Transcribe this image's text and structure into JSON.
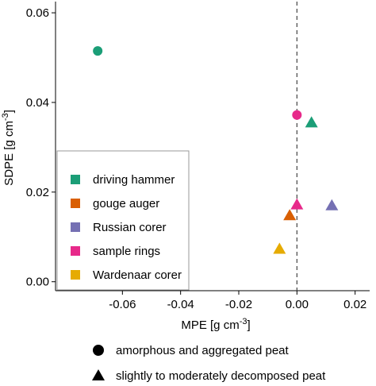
{
  "chart_data": {
    "type": "scatter",
    "xlabel": "MPE [g cm",
    "xlabel_sup": "-3",
    "xlabel_end": "]",
    "ylabel": "SDPE [g cm",
    "ylabel_sup": "-3",
    "ylabel_end": "]",
    "xlim": [
      -0.083,
      0.025
    ],
    "ylim": [
      -0.002,
      0.0625
    ],
    "x_ticks": [
      -0.06,
      -0.04,
      -0.02,
      0.0,
      0.02
    ],
    "x_tick_labels": [
      "-0.06",
      "-0.04",
      "-0.02",
      "0.00",
      "0.02"
    ],
    "y_ticks": [
      0.0,
      0.02,
      0.04,
      0.06
    ],
    "y_tick_labels": [
      "0.00",
      "0.02",
      "0.04",
      "0.06"
    ],
    "reference_line": {
      "x": 0,
      "style": "dashed"
    },
    "grid": false,
    "color_legend": {
      "placement": "bottom-left",
      "entries": [
        {
          "name": "driving hammer",
          "color": "#1b9e77"
        },
        {
          "name": "gouge auger",
          "color": "#d95f02"
        },
        {
          "name": "Russian corer",
          "color": "#7570b3"
        },
        {
          "name": "sample rings",
          "color": "#e7298a"
        },
        {
          "name": "Wardenaar corer",
          "color": "#e6ab02"
        }
      ]
    },
    "shape_legend": {
      "placement": "bottom",
      "entries": [
        {
          "name": "amorphous and aggregated peat",
          "shape": "circle"
        },
        {
          "name": "slightly to moderately decomposed peat",
          "shape": "triangle"
        }
      ]
    },
    "points": [
      {
        "series": "driving hammer",
        "shape": "circle",
        "x": -0.0685,
        "y": 0.0515
      },
      {
        "series": "driving hammer",
        "shape": "triangle",
        "x": 0.005,
        "y": 0.0355
      },
      {
        "series": "sample rings",
        "shape": "circle",
        "x": 0.0,
        "y": 0.0372
      },
      {
        "series": "sample rings",
        "shape": "triangle",
        "x": 0.0,
        "y": 0.0172
      },
      {
        "series": "Russian corer",
        "shape": "triangle",
        "x": 0.012,
        "y": 0.017
      },
      {
        "series": "gouge auger",
        "shape": "triangle",
        "x": -0.0025,
        "y": 0.0148
      },
      {
        "series": "Wardenaar corer",
        "shape": "triangle",
        "x": -0.006,
        "y": 0.0073
      }
    ]
  }
}
